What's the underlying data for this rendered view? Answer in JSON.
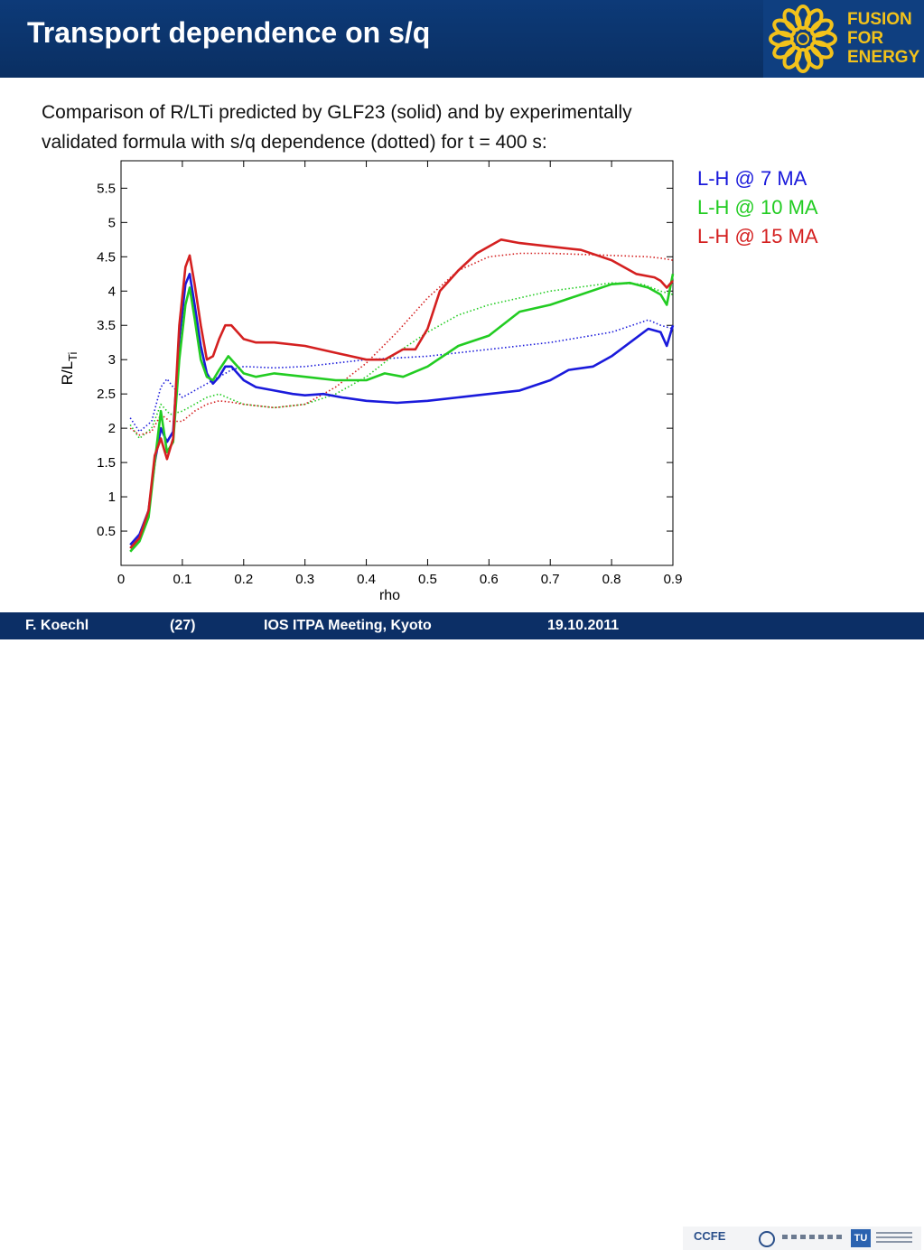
{
  "header": {
    "title": "Transport dependence on s/q",
    "logo_text": [
      "FUSION",
      "FOR",
      "ENERGY"
    ]
  },
  "caption": {
    "line1": "Comparison of R/LTi predicted by GLF23 (solid) and by experimentally",
    "line2": "validated formula with s/q dependence (dotted) for t = 400 s:"
  },
  "legend": [
    {
      "label": "L-H @ 7 MA",
      "color": "#1a1adb"
    },
    {
      "label": "L-H @ 10 MA",
      "color": "#22cc22"
    },
    {
      "label": "L-H @ 15 MA",
      "color": "#d42020"
    }
  ],
  "footer": {
    "author": "F. Koechl",
    "page": "(27)",
    "meeting": "IOS ITPA Meeting, Kyoto",
    "date": "19.10.2011",
    "partner_logo_text": "CCFE",
    "tu_logo_text": "TU"
  },
  "chart_data": {
    "type": "line",
    "xlabel": "rho",
    "ylabel": "R/L",
    "ylabel_sub": "Ti",
    "xlim": [
      0,
      0.9
    ],
    "ylim": [
      0,
      5.9
    ],
    "xticks": [
      0,
      0.1,
      0.2,
      0.3,
      0.4,
      0.5,
      0.6,
      0.7,
      0.8,
      0.9
    ],
    "xtick_labels": [
      "0",
      "0.1",
      "0.2",
      "0.3",
      "0.4",
      "0.5",
      "0.6",
      "0.7",
      "0.8",
      "0.9"
    ],
    "yticks": [
      0.5,
      1,
      1.5,
      2,
      2.5,
      3,
      3.5,
      4,
      4.5,
      5,
      5.5
    ],
    "ytick_labels": [
      "0.5",
      "1",
      "1.5",
      "2",
      "2.5",
      "3",
      "3.5",
      "4",
      "4.5",
      "5",
      "5.5"
    ],
    "grid": false,
    "series": [
      {
        "name": "L-H @ 7 MA",
        "style": "solid",
        "color": "#1a1adb",
        "points": [
          [
            0.015,
            0.3
          ],
          [
            0.03,
            0.45
          ],
          [
            0.045,
            0.8
          ],
          [
            0.055,
            1.5
          ],
          [
            0.065,
            2.0
          ],
          [
            0.075,
            1.8
          ],
          [
            0.085,
            1.95
          ],
          [
            0.095,
            3.3
          ],
          [
            0.105,
            4.1
          ],
          [
            0.112,
            4.25
          ],
          [
            0.12,
            3.8
          ],
          [
            0.13,
            3.2
          ],
          [
            0.14,
            2.8
          ],
          [
            0.15,
            2.65
          ],
          [
            0.16,
            2.75
          ],
          [
            0.17,
            2.9
          ],
          [
            0.18,
            2.9
          ],
          [
            0.2,
            2.7
          ],
          [
            0.22,
            2.6
          ],
          [
            0.25,
            2.55
          ],
          [
            0.28,
            2.5
          ],
          [
            0.3,
            2.48
          ],
          [
            0.33,
            2.5
          ],
          [
            0.36,
            2.45
          ],
          [
            0.4,
            2.4
          ],
          [
            0.45,
            2.37
          ],
          [
            0.5,
            2.4
          ],
          [
            0.55,
            2.45
          ],
          [
            0.6,
            2.5
          ],
          [
            0.65,
            2.55
          ],
          [
            0.7,
            2.7
          ],
          [
            0.73,
            2.85
          ],
          [
            0.77,
            2.9
          ],
          [
            0.8,
            3.05
          ],
          [
            0.83,
            3.25
          ],
          [
            0.86,
            3.45
          ],
          [
            0.88,
            3.4
          ],
          [
            0.89,
            3.2
          ],
          [
            0.9,
            3.5
          ]
        ]
      },
      {
        "name": "L-H @ 10 MA",
        "style": "solid",
        "color": "#22cc22",
        "points": [
          [
            0.015,
            0.2
          ],
          [
            0.03,
            0.35
          ],
          [
            0.045,
            0.7
          ],
          [
            0.055,
            1.5
          ],
          [
            0.065,
            2.25
          ],
          [
            0.075,
            1.65
          ],
          [
            0.085,
            1.8
          ],
          [
            0.095,
            3.0
          ],
          [
            0.105,
            3.8
          ],
          [
            0.112,
            4.05
          ],
          [
            0.12,
            3.6
          ],
          [
            0.13,
            3.0
          ],
          [
            0.14,
            2.75
          ],
          [
            0.15,
            2.7
          ],
          [
            0.16,
            2.85
          ],
          [
            0.175,
            3.05
          ],
          [
            0.2,
            2.8
          ],
          [
            0.22,
            2.75
          ],
          [
            0.25,
            2.8
          ],
          [
            0.3,
            2.75
          ],
          [
            0.35,
            2.7
          ],
          [
            0.4,
            2.7
          ],
          [
            0.43,
            2.8
          ],
          [
            0.46,
            2.75
          ],
          [
            0.5,
            2.9
          ],
          [
            0.55,
            3.2
          ],
          [
            0.6,
            3.35
          ],
          [
            0.65,
            3.7
          ],
          [
            0.7,
            3.8
          ],
          [
            0.75,
            3.95
          ],
          [
            0.8,
            4.1
          ],
          [
            0.83,
            4.12
          ],
          [
            0.86,
            4.05
          ],
          [
            0.88,
            3.95
          ],
          [
            0.89,
            3.8
          ],
          [
            0.9,
            4.25
          ]
        ]
      },
      {
        "name": "L-H @ 15 MA",
        "style": "solid",
        "color": "#d42020",
        "points": [
          [
            0.015,
            0.25
          ],
          [
            0.03,
            0.4
          ],
          [
            0.045,
            0.8
          ],
          [
            0.055,
            1.6
          ],
          [
            0.065,
            1.85
          ],
          [
            0.075,
            1.55
          ],
          [
            0.085,
            1.85
          ],
          [
            0.095,
            3.5
          ],
          [
            0.105,
            4.35
          ],
          [
            0.112,
            4.52
          ],
          [
            0.12,
            4.1
          ],
          [
            0.13,
            3.5
          ],
          [
            0.14,
            3.0
          ],
          [
            0.15,
            3.05
          ],
          [
            0.16,
            3.3
          ],
          [
            0.17,
            3.5
          ],
          [
            0.18,
            3.5
          ],
          [
            0.2,
            3.3
          ],
          [
            0.22,
            3.25
          ],
          [
            0.25,
            3.25
          ],
          [
            0.3,
            3.2
          ],
          [
            0.35,
            3.1
          ],
          [
            0.4,
            3.0
          ],
          [
            0.43,
            3.0
          ],
          [
            0.46,
            3.15
          ],
          [
            0.48,
            3.15
          ],
          [
            0.5,
            3.45
          ],
          [
            0.52,
            4.0
          ],
          [
            0.55,
            4.3
          ],
          [
            0.58,
            4.55
          ],
          [
            0.6,
            4.65
          ],
          [
            0.62,
            4.75
          ],
          [
            0.65,
            4.7
          ],
          [
            0.7,
            4.65
          ],
          [
            0.75,
            4.6
          ],
          [
            0.8,
            4.45
          ],
          [
            0.84,
            4.25
          ],
          [
            0.87,
            4.2
          ],
          [
            0.88,
            4.15
          ],
          [
            0.89,
            4.05
          ],
          [
            0.9,
            4.15
          ]
        ]
      },
      {
        "name": "L-H @ 7 MA",
        "style": "dotted",
        "color": "#1a1adb",
        "points": [
          [
            0.015,
            2.15
          ],
          [
            0.03,
            1.95
          ],
          [
            0.05,
            2.1
          ],
          [
            0.065,
            2.6
          ],
          [
            0.075,
            2.72
          ],
          [
            0.085,
            2.6
          ],
          [
            0.1,
            2.45
          ],
          [
            0.12,
            2.55
          ],
          [
            0.14,
            2.65
          ],
          [
            0.16,
            2.75
          ],
          [
            0.18,
            2.85
          ],
          [
            0.2,
            2.9
          ],
          [
            0.25,
            2.88
          ],
          [
            0.3,
            2.9
          ],
          [
            0.4,
            3.0
          ],
          [
            0.5,
            3.05
          ],
          [
            0.6,
            3.15
          ],
          [
            0.7,
            3.25
          ],
          [
            0.8,
            3.4
          ],
          [
            0.86,
            3.58
          ],
          [
            0.88,
            3.5
          ],
          [
            0.9,
            3.45
          ]
        ]
      },
      {
        "name": "L-H @ 10 MA",
        "style": "dotted",
        "color": "#22cc22",
        "points": [
          [
            0.015,
            2.05
          ],
          [
            0.03,
            1.85
          ],
          [
            0.05,
            2.0
          ],
          [
            0.065,
            2.35
          ],
          [
            0.08,
            2.2
          ],
          [
            0.1,
            2.25
          ],
          [
            0.12,
            2.35
          ],
          [
            0.14,
            2.45
          ],
          [
            0.16,
            2.5
          ],
          [
            0.18,
            2.42
          ],
          [
            0.2,
            2.35
          ],
          [
            0.25,
            2.3
          ],
          [
            0.3,
            2.35
          ],
          [
            0.35,
            2.5
          ],
          [
            0.4,
            2.75
          ],
          [
            0.45,
            3.1
          ],
          [
            0.5,
            3.4
          ],
          [
            0.55,
            3.65
          ],
          [
            0.6,
            3.8
          ],
          [
            0.65,
            3.9
          ],
          [
            0.7,
            4.0
          ],
          [
            0.8,
            4.12
          ],
          [
            0.85,
            4.1
          ],
          [
            0.88,
            4.0
          ],
          [
            0.9,
            3.95
          ]
        ]
      },
      {
        "name": "L-H @ 15 MA",
        "style": "dotted",
        "color": "#d42020",
        "points": [
          [
            0.015,
            2.0
          ],
          [
            0.03,
            1.9
          ],
          [
            0.05,
            1.95
          ],
          [
            0.065,
            2.2
          ],
          [
            0.08,
            2.1
          ],
          [
            0.1,
            2.1
          ],
          [
            0.12,
            2.25
          ],
          [
            0.14,
            2.35
          ],
          [
            0.16,
            2.4
          ],
          [
            0.18,
            2.38
          ],
          [
            0.2,
            2.35
          ],
          [
            0.25,
            2.3
          ],
          [
            0.3,
            2.35
          ],
          [
            0.35,
            2.6
          ],
          [
            0.4,
            2.95
          ],
          [
            0.45,
            3.4
          ],
          [
            0.5,
            3.9
          ],
          [
            0.55,
            4.3
          ],
          [
            0.6,
            4.5
          ],
          [
            0.65,
            4.55
          ],
          [
            0.7,
            4.55
          ],
          [
            0.8,
            4.52
          ],
          [
            0.86,
            4.5
          ],
          [
            0.88,
            4.48
          ],
          [
            0.9,
            4.45
          ]
        ]
      }
    ]
  }
}
